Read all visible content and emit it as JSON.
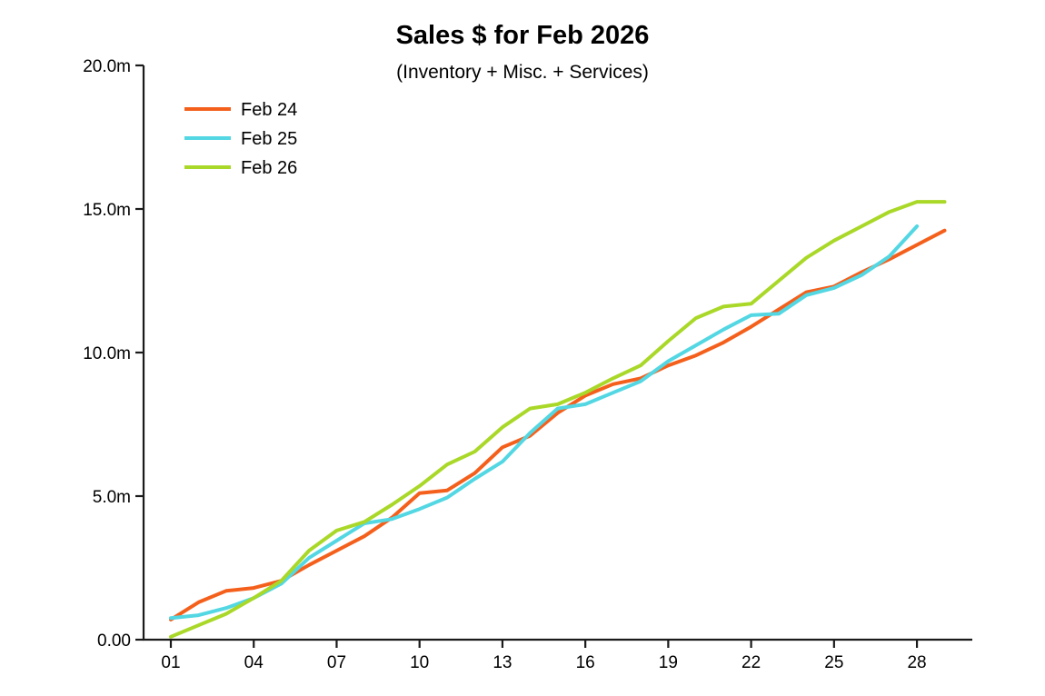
{
  "page": {
    "background": "#ffffff"
  },
  "chart_data": {
    "type": "line",
    "title": "Sales $ for Feb 2026",
    "subtitle": "(Inventory + Misc. + Services)",
    "xlabel": "",
    "ylabel": "",
    "y_unit": "m (millions of $)",
    "x_unit": "day of month",
    "ylim": [
      0,
      20
    ],
    "xlim": [
      0,
      30
    ],
    "grid": false,
    "legend_position": "top-left",
    "y_ticks": [
      {
        "value": 0,
        "label": "0.00"
      },
      {
        "value": 5,
        "label": "5.0m"
      },
      {
        "value": 10,
        "label": "10.0m"
      },
      {
        "value": 15,
        "label": "15.0m"
      },
      {
        "value": 20,
        "label": "20.0m"
      }
    ],
    "x_ticks": [
      {
        "value": 1,
        "label": "01"
      },
      {
        "value": 4,
        "label": "04"
      },
      {
        "value": 7,
        "label": "07"
      },
      {
        "value": 10,
        "label": "10"
      },
      {
        "value": 13,
        "label": "13"
      },
      {
        "value": 16,
        "label": "16"
      },
      {
        "value": 19,
        "label": "19"
      },
      {
        "value": 22,
        "label": "22"
      },
      {
        "value": 25,
        "label": "25"
      },
      {
        "value": 28,
        "label": "28"
      }
    ],
    "series": [
      {
        "name": "Feb 24",
        "color": "#F4601C",
        "days": [
          1,
          2,
          3,
          4,
          5,
          6,
          7,
          8,
          9,
          10,
          11,
          12,
          13,
          14,
          15,
          16,
          17,
          18,
          19,
          20,
          21,
          22,
          23,
          24,
          25,
          26,
          27,
          28,
          29
        ],
        "values": [
          0.7,
          1.3,
          1.7,
          1.8,
          2.05,
          2.6,
          3.1,
          3.6,
          4.25,
          5.1,
          5.2,
          5.8,
          6.7,
          7.1,
          7.9,
          8.5,
          8.9,
          9.1,
          9.55,
          9.9,
          10.35,
          10.9,
          11.5,
          12.1,
          12.3,
          12.8,
          13.25,
          13.75,
          14.25
        ]
      },
      {
        "name": "Feb 25",
        "color": "#53D7E3",
        "days": [
          1,
          2,
          3,
          4,
          5,
          6,
          7,
          8,
          9,
          10,
          11,
          12,
          13,
          14,
          15,
          16,
          17,
          18,
          19,
          20,
          21,
          22,
          23,
          24,
          25,
          26,
          27,
          28
        ],
        "values": [
          0.75,
          0.85,
          1.1,
          1.45,
          1.95,
          2.85,
          3.45,
          4.05,
          4.2,
          4.55,
          4.95,
          5.6,
          6.2,
          7.2,
          8.05,
          8.2,
          8.6,
          9.0,
          9.7,
          10.25,
          10.8,
          11.3,
          11.35,
          12.0,
          12.25,
          12.7,
          13.35,
          14.4
        ]
      },
      {
        "name": "Feb 26",
        "color": "#A9D828",
        "days": [
          1,
          2,
          3,
          4,
          5,
          6,
          7,
          8,
          9,
          10,
          11,
          12,
          13,
          14,
          15,
          16,
          17,
          18,
          19,
          20,
          21,
          22,
          23,
          24,
          25,
          26,
          27,
          28,
          29
        ],
        "values": [
          0.1,
          0.5,
          0.9,
          1.45,
          2.05,
          3.1,
          3.8,
          4.1,
          4.7,
          5.35,
          6.1,
          6.55,
          7.4,
          8.05,
          8.2,
          8.6,
          9.1,
          9.55,
          10.4,
          11.2,
          11.6,
          11.7,
          12.5,
          13.3,
          13.9,
          14.4,
          14.9,
          15.25,
          15.25
        ]
      }
    ]
  }
}
